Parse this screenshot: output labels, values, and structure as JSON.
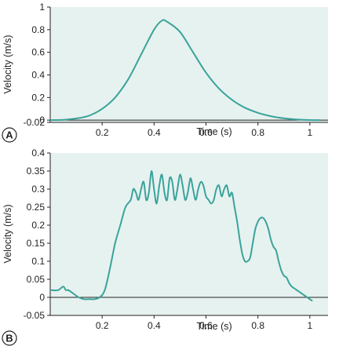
{
  "colors": {
    "plot_bg": "#e6f2f0",
    "line": "#3aa39a",
    "axis": "#222222"
  },
  "chart_data": [
    {
      "type": "line",
      "panel_label": "A",
      "xlabel": "Time (s)",
      "ylabel": "Velocity (m/s)",
      "xlim": [
        0,
        1.07
      ],
      "ylim": [
        -0.02,
        1.0
      ],
      "xticks": [
        0.2,
        0.4,
        0.6,
        0.8,
        1
      ],
      "xtick_labels": [
        "0.2",
        "0.4",
        "0.6",
        "0.8",
        "1"
      ],
      "yticks": [
        -0.02,
        0,
        0.2,
        0.4,
        0.6,
        0.8,
        1
      ],
      "ytick_labels": [
        "-0.02",
        "0",
        "0.2",
        "0.4",
        "0.6",
        "0.8",
        "1"
      ],
      "grid": false,
      "x": [
        0,
        0.05,
        0.1,
        0.15,
        0.2,
        0.25,
        0.3,
        0.35,
        0.4,
        0.43,
        0.45,
        0.5,
        0.55,
        0.6,
        0.65,
        0.7,
        0.75,
        0.8,
        0.85,
        0.9,
        0.95,
        1.0,
        1.04
      ],
      "y": [
        0,
        0.003,
        0.015,
        0.04,
        0.1,
        0.2,
        0.36,
        0.58,
        0.8,
        0.88,
        0.87,
        0.78,
        0.6,
        0.42,
        0.28,
        0.18,
        0.11,
        0.065,
        0.035,
        0.016,
        0.006,
        0.001,
        0
      ]
    },
    {
      "type": "line",
      "panel_label": "B",
      "xlabel": "Time (s)",
      "ylabel": "Velocity (m/s)",
      "xlim": [
        0,
        1.07
      ],
      "ylim": [
        -0.05,
        0.4
      ],
      "xticks": [
        0.2,
        0.4,
        0.6,
        0.8,
        1
      ],
      "xtick_labels": [
        "0.2",
        "0.4",
        "0.6",
        "0.8",
        "1"
      ],
      "yticks": [
        -0.05,
        0,
        0.05,
        0.1,
        0.15,
        0.2,
        0.25,
        0.3,
        0.35,
        0.4
      ],
      "ytick_labels": [
        "-0.05",
        "0",
        "0.05",
        "0.1",
        "0.15",
        "0.2",
        "0.25",
        "0.3",
        "0.35",
        "0.4"
      ],
      "grid": false,
      "x": [
        0,
        0.03,
        0.05,
        0.06,
        0.07,
        0.09,
        0.11,
        0.13,
        0.15,
        0.17,
        0.19,
        0.21,
        0.23,
        0.25,
        0.27,
        0.29,
        0.31,
        0.32,
        0.33,
        0.34,
        0.35,
        0.36,
        0.37,
        0.38,
        0.39,
        0.4,
        0.41,
        0.42,
        0.43,
        0.44,
        0.45,
        0.46,
        0.47,
        0.48,
        0.49,
        0.5,
        0.51,
        0.52,
        0.53,
        0.54,
        0.55,
        0.56,
        0.57,
        0.58,
        0.59,
        0.6,
        0.61,
        0.62,
        0.63,
        0.64,
        0.65,
        0.66,
        0.67,
        0.68,
        0.69,
        0.7,
        0.71,
        0.72,
        0.73,
        0.74,
        0.75,
        0.76,
        0.77,
        0.78,
        0.79,
        0.8,
        0.81,
        0.82,
        0.83,
        0.84,
        0.85,
        0.86,
        0.87,
        0.88,
        0.89,
        0.9,
        0.91,
        0.92,
        0.93,
        0.94,
        0.95,
        0.96,
        0.97,
        0.98,
        0.99,
        1.0,
        1.01
      ],
      "y": [
        0.02,
        0.02,
        0.03,
        0.02,
        0.02,
        0.01,
        0.0,
        -0.005,
        -0.005,
        -0.005,
        0.0,
        0.02,
        0.08,
        0.15,
        0.2,
        0.25,
        0.27,
        0.3,
        0.29,
        0.27,
        0.3,
        0.32,
        0.27,
        0.29,
        0.35,
        0.3,
        0.26,
        0.31,
        0.34,
        0.29,
        0.27,
        0.33,
        0.32,
        0.27,
        0.3,
        0.34,
        0.31,
        0.27,
        0.29,
        0.33,
        0.3,
        0.27,
        0.3,
        0.32,
        0.31,
        0.28,
        0.27,
        0.26,
        0.27,
        0.3,
        0.31,
        0.28,
        0.3,
        0.31,
        0.28,
        0.29,
        0.25,
        0.21,
        0.16,
        0.12,
        0.1,
        0.1,
        0.11,
        0.15,
        0.19,
        0.21,
        0.22,
        0.22,
        0.21,
        0.19,
        0.16,
        0.14,
        0.13,
        0.1,
        0.075,
        0.06,
        0.055,
        0.04,
        0.03,
        0.025,
        0.02,
        0.015,
        0.01,
        0.005,
        0.0,
        -0.005,
        -0.01
      ]
    }
  ]
}
